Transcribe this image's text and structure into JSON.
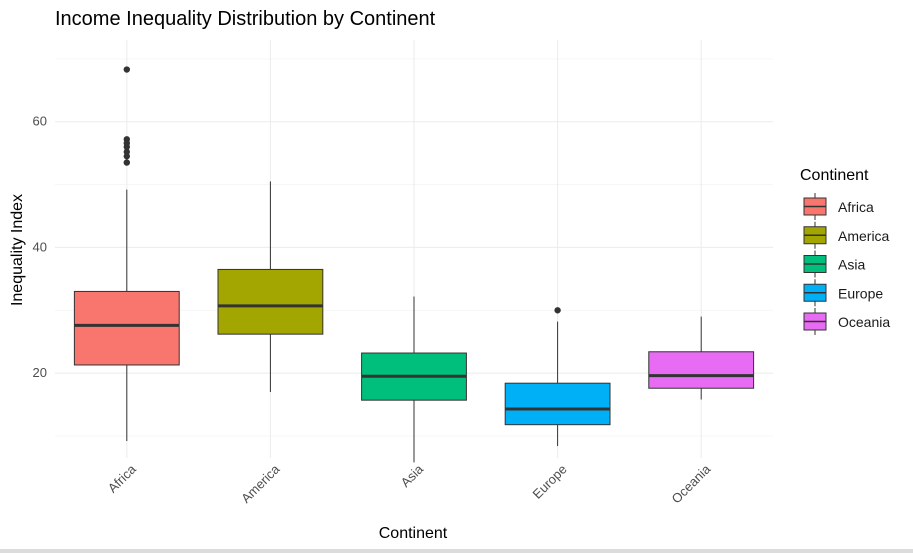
{
  "chart_data": {
    "type": "boxplot",
    "title": "Income Inequality Distribution by Continent",
    "xlabel": "Continent",
    "ylabel": "Inequality Index",
    "ylim": [
      6.5,
      73
    ],
    "y_ticks": [
      20,
      40,
      60
    ],
    "grid": true,
    "legend": {
      "title": "Continent",
      "position": "right"
    },
    "categories": [
      "Africa",
      "America",
      "Asia",
      "Europe",
      "Oceania"
    ],
    "colors": [
      "#F8766D",
      "#A3A500",
      "#00BF7D",
      "#00B0F6",
      "#E76BF3"
    ],
    "series": [
      {
        "name": "Africa",
        "whisker_low": 9.2,
        "q1": 21.3,
        "median": 27.6,
        "q3": 33.0,
        "whisker_high": 49.2,
        "outliers": [
          53.5,
          54.5,
          55.2,
          56.0,
          56.6,
          57.2,
          68.3
        ]
      },
      {
        "name": "America",
        "whisker_low": 17.0,
        "q1": 26.2,
        "median": 30.7,
        "q3": 36.5,
        "whisker_high": 50.5,
        "outliers": []
      },
      {
        "name": "Asia",
        "whisker_low": 5.8,
        "q1": 15.7,
        "median": 19.5,
        "q3": 23.2,
        "whisker_high": 32.2,
        "outliers": []
      },
      {
        "name": "Europe",
        "whisker_low": 8.4,
        "q1": 11.8,
        "median": 14.3,
        "q3": 18.4,
        "whisker_high": 28.2,
        "outliers": [
          30.0
        ]
      },
      {
        "name": "Oceania",
        "whisker_low": 15.8,
        "q1": 17.6,
        "median": 19.6,
        "q3": 23.4,
        "whisker_high": 29.0,
        "outliers": []
      }
    ]
  }
}
